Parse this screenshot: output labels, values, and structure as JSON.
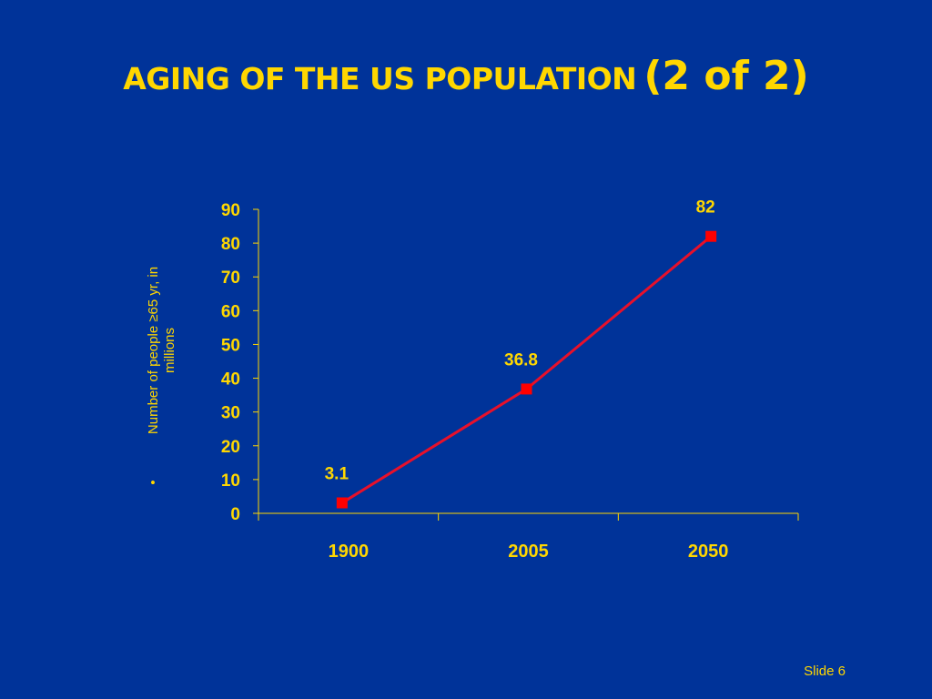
{
  "slide": {
    "title_main": "AGING OF THE US POPULATION",
    "title_suffix": "(2 of 2)",
    "slide_number": "Slide 6"
  },
  "chart_data": {
    "type": "line",
    "title": "",
    "ylabel_bullet": "•",
    "ylabel_line1": "Number of people ≥65 yr, in",
    "ylabel_line2": "millions",
    "xlabel": "",
    "categories": [
      "1900",
      "2005",
      "2050"
    ],
    "series": [
      {
        "values": [
          3.1,
          36.8,
          82
        ],
        "data_labels": [
          "3.1",
          "36.8",
          "82"
        ],
        "color": "#e8102a",
        "marker": "square"
      }
    ],
    "ylim": [
      0,
      90
    ],
    "yticks": [
      0,
      10,
      20,
      30,
      40,
      50,
      60,
      70,
      80,
      90
    ],
    "grid": false,
    "legend": "none",
    "colors": {
      "background": "#003399",
      "text": "#ffd700",
      "axis": "#ffd700",
      "line": "#e8102a"
    }
  }
}
